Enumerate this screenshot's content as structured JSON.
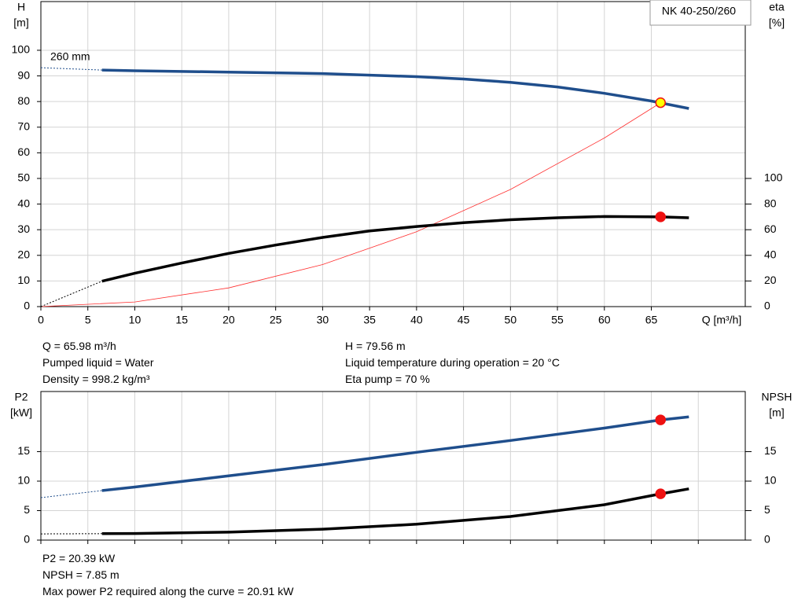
{
  "chart_data": [
    {
      "type": "line",
      "title": "NK 40-250/260",
      "annotation": "260 mm",
      "ylabel": [
        "H",
        "[m]"
      ],
      "y2label": [
        "eta",
        "[%]"
      ],
      "xlabel": "Q [m³/h]",
      "xlim": [
        0,
        75
      ],
      "ylim": [
        0,
        119
      ],
      "y2lim": [
        0,
        238
      ],
      "xticks": [
        0,
        5,
        10,
        15,
        20,
        25,
        30,
        35,
        40,
        45,
        50,
        55,
        60,
        65
      ],
      "yticks": [
        0,
        10,
        20,
        30,
        40,
        50,
        60,
        70,
        80,
        90,
        100
      ],
      "y2ticks": [
        0,
        20,
        40,
        60,
        80,
        100
      ],
      "grid": true,
      "series": [
        {
          "style": "dashed",
          "axis": "y",
          "color": "#1f4e8c",
          "x": [
            0,
            6.5
          ],
          "values": [
            93.2,
            92.3
          ]
        },
        {
          "style": "line",
          "axis": "y",
          "color": "#1f4e8c",
          "x": [
            6.5,
            10,
            20,
            30,
            40,
            45,
            50,
            55,
            60,
            65,
            69
          ],
          "values": [
            92.3,
            92,
            91.5,
            90.9,
            89.7,
            88.8,
            87.5,
            85.7,
            83.2,
            80.2,
            77.3
          ]
        },
        {
          "style": "thin",
          "axis": "y",
          "color": "#ff3030",
          "x": [
            0,
            10,
            20,
            30,
            40,
            50,
            60,
            66
          ],
          "values": [
            0,
            1.8,
            7.3,
            16.4,
            29.2,
            45.7,
            65.8,
            79.56
          ]
        },
        {
          "style": "dashed",
          "axis": "y2",
          "color": "#000000",
          "x": [
            0,
            6.5
          ],
          "values": [
            0,
            19.8
          ]
        },
        {
          "style": "line",
          "axis": "y2",
          "color": "#000000",
          "x": [
            6.5,
            10,
            15,
            20,
            25,
            30,
            35,
            40,
            45,
            50,
            55,
            60,
            66,
            69
          ],
          "values": [
            19.8,
            26,
            34,
            41.5,
            48,
            54,
            59,
            62.5,
            65.5,
            67.8,
            69.3,
            70.3,
            70,
            69.3
          ]
        },
        {
          "style": "point",
          "axis": "y",
          "color": "#ffff00",
          "x": [
            65.98
          ],
          "values": [
            79.56
          ]
        },
        {
          "style": "point",
          "axis": "y2",
          "color": "#ee1111",
          "x": [
            65.98
          ],
          "values": [
            70
          ]
        }
      ],
      "notes": [
        [
          "Q = 65.98 m³/h",
          "Pumped liquid = Water",
          "Density = 998.2 kg/m³"
        ],
        [
          "H = 79.56 m",
          "Liquid temperature during operation = 20 °C",
          "Eta pump = 70 %"
        ]
      ]
    },
    {
      "type": "line",
      "ylabel": [
        "P2",
        "[kW]"
      ],
      "y2label": [
        "NPSH",
        "[m]"
      ],
      "xlim": [
        0,
        75
      ],
      "ylim": [
        0,
        25.2
      ],
      "y2lim": [
        0,
        25.2
      ],
      "xticks": [
        0,
        5,
        10,
        15,
        20,
        25,
        30,
        35,
        40,
        45,
        50,
        55,
        60,
        65,
        70
      ],
      "yticks": [
        0,
        5,
        10,
        15
      ],
      "y2ticks": [
        0,
        5,
        10,
        15
      ],
      "grid": true,
      "series": [
        {
          "style": "dashed",
          "axis": "y",
          "color": "#1f4e8c",
          "x": [
            0,
            6.5
          ],
          "values": [
            7.2,
            8.4
          ]
        },
        {
          "style": "line",
          "axis": "y",
          "color": "#1f4e8c",
          "x": [
            6.5,
            10,
            20,
            30,
            40,
            50,
            60,
            66,
            69
          ],
          "values": [
            8.4,
            9,
            10.9,
            12.8,
            14.9,
            16.9,
            19,
            20.39,
            20.91
          ]
        },
        {
          "style": "dashed",
          "axis": "y2",
          "color": "#000000",
          "x": [
            0,
            6.5
          ],
          "values": [
            1.05,
            1.1
          ]
        },
        {
          "style": "line",
          "axis": "y2",
          "color": "#000000",
          "x": [
            6.5,
            10,
            20,
            30,
            40,
            50,
            60,
            66,
            69
          ],
          "values": [
            1.1,
            1.12,
            1.35,
            1.85,
            2.7,
            4,
            6,
            7.85,
            8.7
          ]
        },
        {
          "style": "point",
          "axis": "y",
          "color": "#ee1111",
          "x": [
            65.98
          ],
          "values": [
            20.39
          ]
        },
        {
          "style": "point",
          "axis": "y2",
          "color": "#ee1111",
          "x": [
            65.98
          ],
          "values": [
            7.85
          ]
        }
      ],
      "notes": [
        [
          "P2 = 20.39 kW",
          "NPSH = 7.85 m",
          "Max power P2 required along the curve = 20.91 kW"
        ]
      ]
    }
  ]
}
